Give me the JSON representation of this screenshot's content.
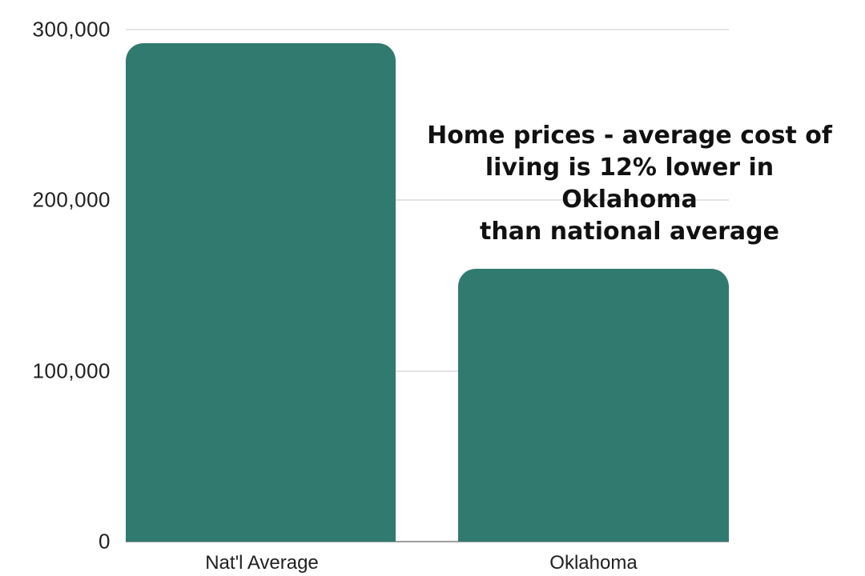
{
  "chart_data": {
    "type": "bar",
    "title": "",
    "categories": [
      "Nat'l Average",
      "Oklahoma"
    ],
    "values": [
      292000,
      160000
    ],
    "xlabel": "",
    "ylabel": "",
    "ylim": [
      0,
      300000
    ],
    "ytick_values": [
      0,
      100000,
      200000,
      300000
    ],
    "ytick_labels": [
      "0",
      "100,000",
      "200,000",
      "300,000"
    ],
    "grid": "horizontal",
    "legend": "none",
    "bar_color": "#317a70",
    "gridline_color": "#e4e4e4",
    "baseline_color": "#9e9e9e",
    "annotation": {
      "full_text": "Home prices - average cost of living is 12% lower in Oklahoma than national average",
      "line1": "Home prices - average cost of",
      "line2": "living is 12% lower in Oklahoma",
      "line3": "than national average"
    }
  }
}
